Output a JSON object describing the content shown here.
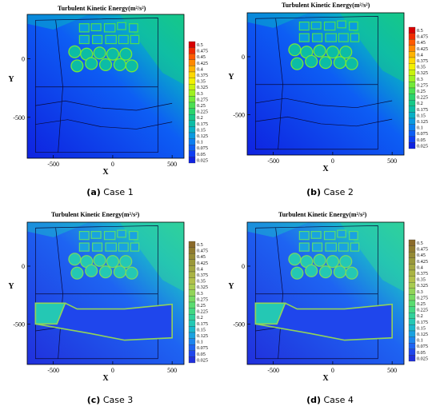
{
  "figure": {
    "panels": [
      {
        "title": "Turbulent Kinetic Energy(m²/s²)",
        "caption_letter": "(a)",
        "caption_text": "Case 1",
        "wall_band": false,
        "palette": "jet"
      },
      {
        "title": "Turbulent Kinetic Energy(m²/s²)",
        "caption_letter": "(b)",
        "caption_text": "Case 2",
        "wall_band": false,
        "palette": "jet"
      },
      {
        "title": "Turbulent Kinetic Energy(m²/s²)",
        "caption_letter": "(c)",
        "caption_text": "Case 3",
        "wall_band": true,
        "palette": "olive"
      },
      {
        "title": "Turbulent Kinetic Energy(m²/s²)",
        "caption_letter": "(d)",
        "caption_text": "Case 4",
        "wall_band": true,
        "palette": "olive"
      }
    ]
  },
  "chart_data": [
    {
      "type": "heatmap",
      "title": "Turbulent Kinetic Energy(m²/s²)",
      "xlabel": "X",
      "ylabel": "Y",
      "x_ticks": [
        -500,
        0,
        500
      ],
      "y_ticks": [
        0,
        -500
      ],
      "xlim": [
        -720,
        600
      ],
      "ylim": [
        -850,
        380
      ],
      "legend_levels": [
        "0.5",
        "0.475",
        "0.45",
        "0.425",
        "0.4",
        "0.375",
        "0.35",
        "0.325",
        "0.3",
        "0.275",
        "0.25",
        "0.225",
        "0.2",
        "0.175",
        "0.15",
        "0.125",
        "0.1",
        "0.075",
        "0.05",
        "0.025"
      ],
      "legend_colors": [
        "#d70000",
        "#ef2a00",
        "#ff5a00",
        "#ff8800",
        "#ffb300",
        "#ffd800",
        "#f2f000",
        "#c8f20c",
        "#9ef020",
        "#72ea38",
        "#4ae052",
        "#2ad46c",
        "#16c888",
        "#0cbca6",
        "#08b0c6",
        "#0a9ae0",
        "#0b7ef0",
        "#0d5ef4",
        "#0e3ef2",
        "#0f22e0"
      ],
      "caption": "Case 1"
    },
    {
      "type": "heatmap",
      "title": "Turbulent Kinetic Energy(m²/s²)",
      "xlabel": "X",
      "ylabel": "Y",
      "x_ticks": [
        -500,
        0,
        500
      ],
      "y_ticks": [
        0,
        -500
      ],
      "xlim": [
        -720,
        600
      ],
      "ylim": [
        -850,
        380
      ],
      "legend_levels": [
        "0.5",
        "0.475",
        "0.45",
        "0.425",
        "0.4",
        "0.375",
        "0.35",
        "0.325",
        "0.3",
        "0.275",
        "0.25",
        "0.225",
        "0.2",
        "0.175",
        "0.15",
        "0.125",
        "0.1",
        "0.075",
        "0.05",
        "0.025"
      ],
      "legend_colors": [
        "#d70000",
        "#ef2a00",
        "#ff5a00",
        "#ff8800",
        "#ffb300",
        "#ffd800",
        "#f2f000",
        "#c8f20c",
        "#9ef020",
        "#72ea38",
        "#4ae052",
        "#2ad46c",
        "#16c888",
        "#0cbca6",
        "#08b0c6",
        "#0a9ae0",
        "#0b7ef0",
        "#0d5ef4",
        "#0e3ef2",
        "#0f22e0"
      ],
      "caption": "Case 2"
    },
    {
      "type": "heatmap",
      "title": "Turbulent Kinetic Energy(m²/s²)",
      "xlabel": "X",
      "ylabel": "Y",
      "x_ticks": [
        -500,
        0,
        500
      ],
      "y_ticks": [
        0,
        -500
      ],
      "xlim": [
        -720,
        600
      ],
      "ylim": [
        -850,
        380
      ],
      "legend_levels": [
        "0.5",
        "0.475",
        "0.45",
        "0.425",
        "0.4",
        "0.375",
        "0.35",
        "0.325",
        "0.3",
        "0.275",
        "0.25",
        "0.225",
        "0.2",
        "0.175",
        "0.15",
        "0.125",
        "0.1",
        "0.075",
        "0.05",
        "0.025"
      ],
      "legend_colors": [
        "#8a6a2a",
        "#8f7a2e",
        "#958a34",
        "#9a983a",
        "#a2a640",
        "#aab444",
        "#b2c04a",
        "#a8cc50",
        "#92d458",
        "#76da62",
        "#5adc70",
        "#42d882",
        "#30d29a",
        "#24c8b4",
        "#1ab8cc",
        "#1aa2e0",
        "#1c84ee",
        "#1e64f2",
        "#1f46ec",
        "#2030dc"
      ],
      "caption": "Case 3"
    },
    {
      "type": "heatmap",
      "title": "Turbulent Kinetic Energy(m²/s²)",
      "xlabel": "X",
      "ylabel": "Y",
      "x_ticks": [
        -500,
        0,
        500
      ],
      "y_ticks": [
        0,
        -500
      ],
      "xlim": [
        -720,
        600
      ],
      "ylim": [
        -850,
        380
      ],
      "legend_levels": [
        "0.5",
        "0.475",
        "0.45",
        "0.425",
        "0.4",
        "0.375",
        "0.35",
        "0.325",
        "0.3",
        "0.275",
        "0.25",
        "0.225",
        "0.2",
        "0.175",
        "0.15",
        "0.125",
        "0.1",
        "0.075",
        "0.05",
        "0.025"
      ],
      "legend_colors": [
        "#8a6a2a",
        "#8f7a2e",
        "#958a34",
        "#9a983a",
        "#a2a640",
        "#aab444",
        "#b2c04a",
        "#a8cc50",
        "#92d458",
        "#76da62",
        "#5adc70",
        "#42d882",
        "#30d29a",
        "#24c8b4",
        "#1ab8cc",
        "#1aa2e0",
        "#1c84ee",
        "#1e64f2",
        "#1f46ec",
        "#2030dc"
      ],
      "caption": "Case 4"
    }
  ]
}
